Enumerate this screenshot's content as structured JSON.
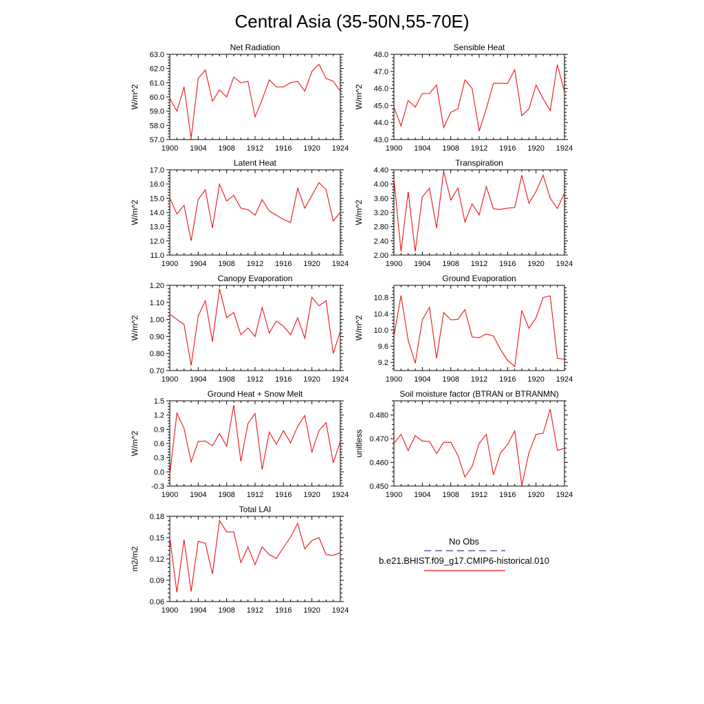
{
  "figure": {
    "title": "Central Asia (35-50N,55-70E)"
  },
  "legend": {
    "obs_label": "No Obs",
    "obs_color": "#3a3a8c",
    "model_label": "b.e21.BHIST.f09_g17.CMIP6-historical.010",
    "model_color": "#ee1111"
  },
  "chart_data": [
    {
      "type": "line",
      "title": "Net Radiation",
      "ylabel": "W/m^2",
      "xlim": [
        1900,
        1924
      ],
      "ylim": [
        57.0,
        63.0
      ],
      "x_ticks": [
        1900,
        1904,
        1908,
        1912,
        1916,
        1920,
        1924
      ],
      "y_ticks": [
        "57.0",
        "58.0",
        "59.0",
        "60.0",
        "61.0",
        "62.0",
        "63.0"
      ],
      "x": [
        1900,
        1901,
        1902,
        1903,
        1904,
        1905,
        1906,
        1907,
        1908,
        1909,
        1910,
        1911,
        1912,
        1913,
        1914,
        1915,
        1916,
        1917,
        1918,
        1919,
        1920,
        1921,
        1922,
        1923,
        1924
      ],
      "values": [
        59.9,
        59.0,
        60.7,
        57.1,
        61.3,
        61.9,
        59.7,
        60.5,
        60.0,
        61.4,
        61.0,
        61.1,
        58.6,
        59.8,
        61.2,
        60.7,
        60.7,
        61.0,
        61.1,
        60.4,
        61.8,
        62.3,
        61.3,
        61.1,
        60.4
      ]
    },
    {
      "type": "line",
      "title": "Sensible Heat",
      "ylabel": "W/m^2",
      "xlim": [
        1900,
        1924
      ],
      "ylim": [
        43.0,
        48.0
      ],
      "x_ticks": [
        1900,
        1904,
        1908,
        1912,
        1916,
        1920,
        1924
      ],
      "y_ticks": [
        "43.0",
        "44.0",
        "45.0",
        "46.0",
        "47.0",
        "48.0"
      ],
      "x": [
        1900,
        1901,
        1902,
        1903,
        1904,
        1905,
        1906,
        1907,
        1908,
        1909,
        1910,
        1911,
        1912,
        1913,
        1914,
        1915,
        1916,
        1917,
        1918,
        1919,
        1920,
        1921,
        1922,
        1923,
        1924
      ],
      "values": [
        44.9,
        43.8,
        45.3,
        44.9,
        45.7,
        45.7,
        46.2,
        43.7,
        44.6,
        44.8,
        46.5,
        46.0,
        43.5,
        44.8,
        46.3,
        46.3,
        46.3,
        47.1,
        44.4,
        44.8,
        46.2,
        45.4,
        44.7,
        47.4,
        45.8
      ]
    },
    {
      "type": "line",
      "title": "Latent Heat",
      "ylabel": "W/m^2",
      "xlim": [
        1900,
        1924
      ],
      "ylim": [
        11.0,
        17.0
      ],
      "x_ticks": [
        1900,
        1904,
        1908,
        1912,
        1916,
        1920,
        1924
      ],
      "y_ticks": [
        "11.0",
        "12.0",
        "13.0",
        "14.0",
        "15.0",
        "16.0",
        "17.0"
      ],
      "x": [
        1900,
        1901,
        1902,
        1903,
        1904,
        1905,
        1906,
        1907,
        1908,
        1909,
        1910,
        1911,
        1912,
        1913,
        1914,
        1915,
        1916,
        1917,
        1918,
        1919,
        1920,
        1921,
        1922,
        1923,
        1924
      ],
      "values": [
        15.0,
        13.9,
        14.5,
        12.0,
        14.9,
        15.6,
        12.9,
        16.0,
        14.8,
        15.2,
        14.3,
        14.2,
        13.8,
        14.9,
        14.1,
        13.8,
        13.5,
        13.3,
        15.7,
        14.3,
        15.2,
        16.1,
        15.6,
        13.4,
        14.0
      ]
    },
    {
      "type": "line",
      "title": "Transpiration",
      "ylabel": "W/m^2",
      "xlim": [
        1900,
        1924
      ],
      "ylim": [
        2.0,
        4.4
      ],
      "x_ticks": [
        1900,
        1904,
        1908,
        1912,
        1916,
        1920,
        1924
      ],
      "y_ticks": [
        "2.00",
        "2.40",
        "2.80",
        "3.20",
        "3.60",
        "4.00",
        "4.40"
      ],
      "x": [
        1900,
        1901,
        1902,
        1903,
        1904,
        1905,
        1906,
        1907,
        1908,
        1909,
        1910,
        1911,
        1912,
        1913,
        1914,
        1915,
        1916,
        1917,
        1918,
        1919,
        1920,
        1921,
        1922,
        1923,
        1924
      ],
      "values": [
        4.15,
        2.1,
        3.78,
        2.1,
        3.64,
        3.88,
        2.76,
        4.36,
        3.55,
        3.89,
        2.93,
        3.44,
        3.13,
        3.93,
        3.3,
        3.29,
        3.32,
        3.34,
        4.25,
        3.46,
        3.79,
        4.25,
        3.6,
        3.31,
        3.74
      ]
    },
    {
      "type": "line",
      "title": "Canopy Evaporation",
      "ylabel": "W/m^2",
      "xlim": [
        1900,
        1924
      ],
      "ylim": [
        0.7,
        1.2
      ],
      "x_ticks": [
        1900,
        1904,
        1908,
        1912,
        1916,
        1920,
        1924
      ],
      "y_ticks": [
        "0.70",
        "0.80",
        "0.90",
        "1.00",
        "1.10",
        "1.20"
      ],
      "x": [
        1900,
        1901,
        1902,
        1903,
        1904,
        1905,
        1906,
        1907,
        1908,
        1909,
        1910,
        1911,
        1912,
        1913,
        1914,
        1915,
        1916,
        1917,
        1918,
        1919,
        1920,
        1921,
        1922,
        1923,
        1924
      ],
      "values": [
        1.03,
        1.0,
        0.97,
        0.73,
        1.02,
        1.11,
        0.87,
        1.18,
        1.01,
        1.04,
        0.91,
        0.95,
        0.9,
        1.07,
        0.92,
        0.99,
        0.96,
        0.91,
        1.01,
        0.89,
        1.13,
        1.08,
        1.11,
        0.8,
        0.93
      ]
    },
    {
      "type": "line",
      "title": "Ground Evaporation",
      "ylabel": "W/m^2",
      "xlim": [
        1900,
        1924
      ],
      "ylim": [
        9.0,
        11.1
      ],
      "x_ticks": [
        1900,
        1904,
        1908,
        1912,
        1916,
        1920,
        1924
      ],
      "y_ticks": [
        "9.2",
        "9.6",
        "10.0",
        "10.4",
        "10.8"
      ],
      "x": [
        1900,
        1901,
        1902,
        1903,
        1904,
        1905,
        1906,
        1907,
        1908,
        1909,
        1910,
        1911,
        1912,
        1913,
        1914,
        1915,
        1916,
        1917,
        1918,
        1919,
        1920,
        1921,
        1922,
        1923,
        1924
      ],
      "values": [
        9.85,
        10.85,
        9.75,
        9.18,
        10.25,
        10.56,
        9.3,
        10.43,
        10.25,
        10.26,
        10.5,
        9.83,
        9.81,
        9.9,
        9.85,
        9.52,
        9.25,
        9.1,
        10.48,
        10.04,
        10.3,
        10.8,
        10.84,
        9.3,
        9.28
      ]
    },
    {
      "type": "line",
      "title": "Ground Heat + Snow Melt",
      "ylabel": "W/m^2",
      "xlim": [
        1900,
        1924
      ],
      "ylim": [
        -0.3,
        1.5
      ],
      "x_ticks": [
        1900,
        1904,
        1908,
        1912,
        1916,
        1920,
        1924
      ],
      "y_ticks": [
        "-0.3",
        "0.0",
        "0.3",
        "0.6",
        "0.9",
        "1.2",
        "1.5"
      ],
      "x": [
        1900,
        1901,
        1902,
        1903,
        1904,
        1905,
        1906,
        1907,
        1908,
        1909,
        1910,
        1911,
        1912,
        1913,
        1914,
        1915,
        1916,
        1917,
        1918,
        1919,
        1920,
        1921,
        1922,
        1923,
        1924
      ],
      "values": [
        -0.05,
        1.24,
        0.92,
        0.21,
        0.64,
        0.65,
        0.55,
        0.81,
        0.54,
        1.41,
        0.22,
        1.02,
        1.23,
        0.05,
        0.84,
        0.58,
        0.87,
        0.61,
        0.96,
        1.19,
        0.42,
        0.87,
        1.04,
        0.19,
        0.64
      ]
    },
    {
      "type": "line",
      "title": "Soil moisture factor (BTRAN or BTRANMN)",
      "ylabel": "unitless",
      "xlim": [
        1900,
        1924
      ],
      "ylim": [
        0.45,
        0.486
      ],
      "x_ticks": [
        1900,
        1904,
        1908,
        1912,
        1916,
        1920,
        1924
      ],
      "y_ticks": [
        "0.450",
        "0.460",
        "0.470",
        "0.480"
      ],
      "x": [
        1900,
        1901,
        1902,
        1903,
        1904,
        1905,
        1906,
        1907,
        1908,
        1909,
        1910,
        1911,
        1912,
        1913,
        1914,
        1915,
        1916,
        1917,
        1918,
        1919,
        1920,
        1921,
        1922,
        1923,
        1924
      ],
      "values": [
        0.468,
        0.4718,
        0.465,
        0.4713,
        0.469,
        0.4688,
        0.4637,
        0.4685,
        0.4685,
        0.463,
        0.4538,
        0.4583,
        0.468,
        0.4718,
        0.4548,
        0.464,
        0.4675,
        0.4733,
        0.4502,
        0.464,
        0.4718,
        0.4723,
        0.4825,
        0.465,
        0.466
      ]
    },
    {
      "type": "line",
      "title": "Total LAI",
      "ylabel": "m2/m2",
      "xlim": [
        1900,
        1924
      ],
      "ylim": [
        0.06,
        0.18
      ],
      "x_ticks": [
        1900,
        1904,
        1908,
        1912,
        1916,
        1920,
        1924
      ],
      "y_ticks": [
        "0.06",
        "0.09",
        "0.12",
        "0.15",
        "0.18"
      ],
      "x": [
        1900,
        1901,
        1902,
        1903,
        1904,
        1905,
        1906,
        1907,
        1908,
        1909,
        1910,
        1911,
        1912,
        1913,
        1914,
        1915,
        1916,
        1917,
        1918,
        1919,
        1920,
        1921,
        1922,
        1923,
        1924
      ],
      "values": [
        0.15,
        0.073,
        0.147,
        0.074,
        0.145,
        0.142,
        0.099,
        0.174,
        0.158,
        0.158,
        0.115,
        0.137,
        0.112,
        0.137,
        0.126,
        0.121,
        0.136,
        0.151,
        0.17,
        0.134,
        0.146,
        0.15,
        0.126,
        0.125,
        0.129
      ]
    }
  ]
}
